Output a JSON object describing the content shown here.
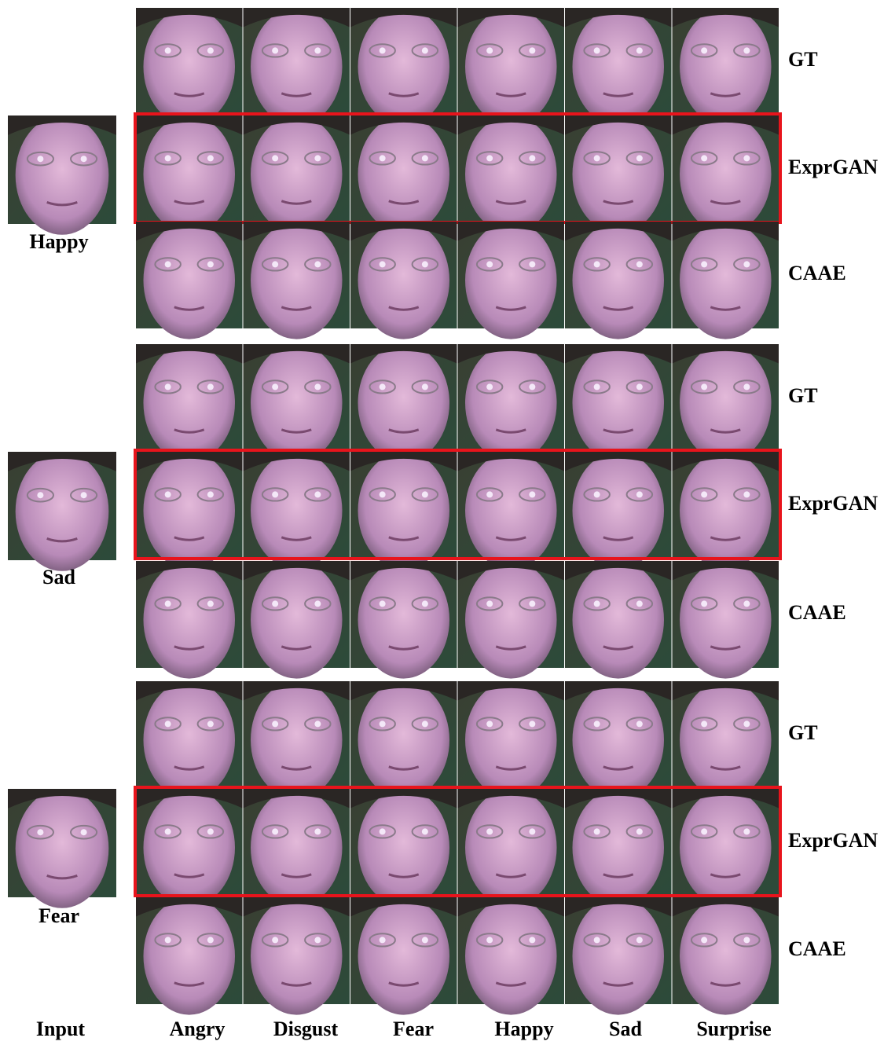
{
  "groups": [
    {
      "input_label": "Happy",
      "rows": [
        "GT",
        "ExprGAN",
        "CAAE"
      ]
    },
    {
      "input_label": "Sad",
      "rows": [
        "GT",
        "ExprGAN",
        "CAAE"
      ]
    },
    {
      "input_label": "Fear",
      "rows": [
        "GT",
        "ExprGAN",
        "CAAE"
      ]
    }
  ],
  "column_labels": [
    "Input",
    "Angry",
    "Disgust",
    "Fear",
    "Happy",
    "Sad",
    "Surprise"
  ]
}
